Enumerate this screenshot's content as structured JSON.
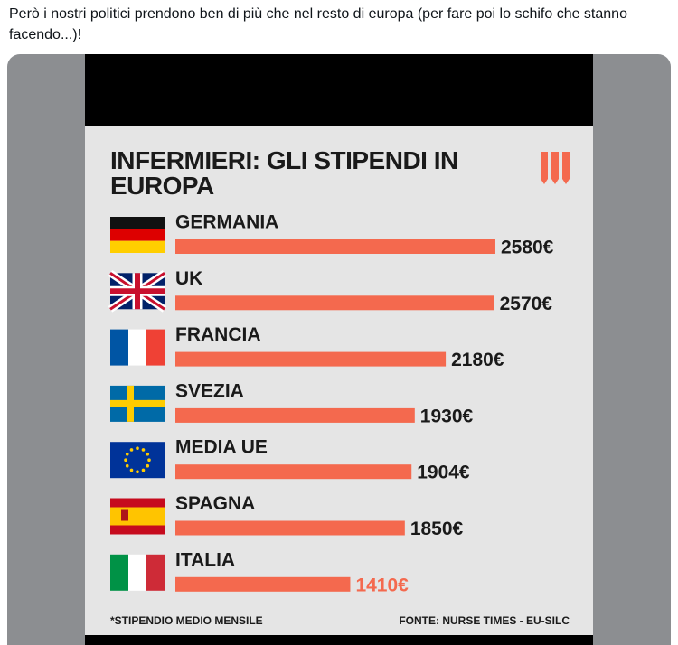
{
  "post": {
    "text": "Però i nostri politici prendono ben di più che nel resto di europa (per fare poi lo schifo che stanno facendo...)!"
  },
  "chart_data": {
    "type": "bar",
    "orientation": "horizontal",
    "title": "INFERMIERI: GLI STIPENDI IN EUROPA",
    "categories": [
      "GERMANIA",
      "UK",
      "FRANCIA",
      "SVEZIA",
      "MEDIA UE",
      "SPAGNA",
      "ITALIA"
    ],
    "values": [
      2580,
      2570,
      2180,
      1930,
      1904,
      1850,
      1410
    ],
    "value_labels": [
      "2580€",
      "2570€",
      "2180€",
      "1930€",
      "1904€",
      "1850€",
      "1410€"
    ],
    "color": "#f4694e",
    "highlight_color": "#f4694e",
    "highlight_index": 6,
    "footnote": "*STIPENDIO MEDIO MENSILE",
    "source": "FONTE: NURSE TIMES  - EU-SILC"
  }
}
